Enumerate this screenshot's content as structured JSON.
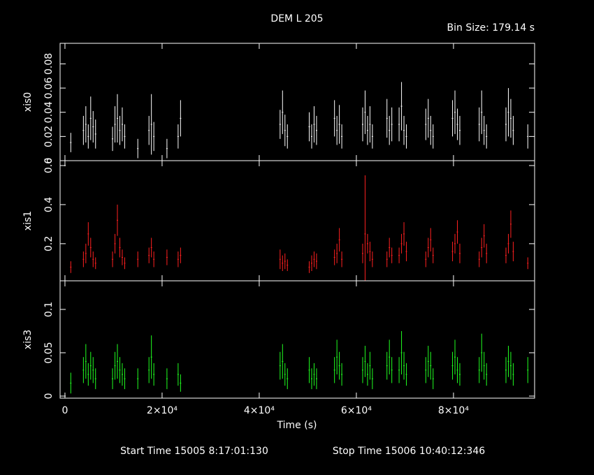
{
  "chart_data": [
    {
      "type": "errorbar",
      "title": "DEM L 205",
      "subtitle": "Bin Size: 179.14 s",
      "ylabel": "xis0",
      "color": "#ffffff",
      "xlim": [
        -1000,
        96700
      ],
      "ylim": [
        0,
        0.097
      ],
      "yticks": [
        0,
        0.02,
        0.04,
        0.06,
        0.08
      ],
      "x": [
        1200,
        3800,
        4300,
        4800,
        5300,
        5800,
        6300,
        9800,
        10300,
        10800,
        11300,
        11800,
        12300,
        15000,
        17300,
        17800,
        18300,
        21000,
        23300,
        23800,
        44300,
        44800,
        45300,
        45800,
        50300,
        50800,
        51300,
        51800,
        55500,
        56000,
        56500,
        57000,
        61300,
        61800,
        62300,
        62800,
        63300,
        66300,
        66800,
        67300,
        68800,
        69300,
        69800,
        70300,
        74300,
        74800,
        75300,
        75800,
        79800,
        80300,
        80800,
        81300,
        85300,
        85800,
        86300,
        86800,
        90800,
        91300,
        91800,
        92300,
        95300
      ],
      "values": [
        0.015,
        0.025,
        0.03,
        0.02,
        0.035,
        0.028,
        0.022,
        0.018,
        0.03,
        0.035,
        0.025,
        0.03,
        0.02,
        0.01,
        0.025,
        0.03,
        0.02,
        0.01,
        0.02,
        0.035,
        0.03,
        0.04,
        0.025,
        0.02,
        0.028,
        0.02,
        0.03,
        0.025,
        0.035,
        0.025,
        0.03,
        0.02,
        0.03,
        0.04,
        0.025,
        0.03,
        0.02,
        0.035,
        0.025,
        0.03,
        0.03,
        0.045,
        0.025,
        0.02,
        0.03,
        0.035,
        0.025,
        0.02,
        0.035,
        0.04,
        0.03,
        0.025,
        0.03,
        0.04,
        0.025,
        0.02,
        0.03,
        0.04,
        0.035,
        0.025,
        0.02
      ],
      "errors": [
        0.008,
        0.012,
        0.015,
        0.01,
        0.018,
        0.013,
        0.012,
        0.01,
        0.015,
        0.02,
        0.012,
        0.014,
        0.01,
        0.008,
        0.012,
        0.025,
        0.012,
        0.008,
        0.01,
        0.015,
        0.012,
        0.018,
        0.013,
        0.01,
        0.012,
        0.01,
        0.015,
        0.012,
        0.015,
        0.012,
        0.016,
        0.01,
        0.014,
        0.018,
        0.012,
        0.015,
        0.01,
        0.016,
        0.012,
        0.014,
        0.014,
        0.02,
        0.012,
        0.01,
        0.013,
        0.016,
        0.012,
        0.01,
        0.015,
        0.018,
        0.013,
        0.012,
        0.014,
        0.018,
        0.012,
        0.01,
        0.014,
        0.02,
        0.016,
        0.012,
        0.01
      ]
    },
    {
      "type": "errorbar",
      "ylabel": "xis1",
      "color": "#ff2020",
      "xlim": [
        -1000,
        96700
      ],
      "ylim": [
        0.01,
        0.625
      ],
      "yticks": [
        0.2,
        0.4,
        0.6
      ],
      "x": [
        1200,
        3800,
        4300,
        4800,
        5300,
        5800,
        6300,
        9800,
        10300,
        10800,
        11300,
        11800,
        12300,
        15000,
        17300,
        17800,
        18300,
        21000,
        23300,
        23800,
        44300,
        44800,
        45300,
        45800,
        50300,
        50800,
        51300,
        51800,
        55500,
        56000,
        56500,
        57000,
        61300,
        61800,
        62300,
        62800,
        63300,
        66300,
        66800,
        67300,
        68800,
        69300,
        69800,
        70300,
        74300,
        74800,
        75300,
        75800,
        79800,
        80300,
        80800,
        81300,
        85300,
        85800,
        86300,
        86800,
        90800,
        91300,
        91800,
        92300,
        95300
      ],
      "values": [
        0.08,
        0.12,
        0.15,
        0.25,
        0.18,
        0.12,
        0.1,
        0.12,
        0.2,
        0.32,
        0.18,
        0.13,
        0.1,
        0.12,
        0.14,
        0.18,
        0.12,
        0.13,
        0.12,
        0.14,
        0.12,
        0.1,
        0.11,
        0.09,
        0.08,
        0.1,
        0.12,
        0.11,
        0.13,
        0.15,
        0.22,
        0.12,
        0.15,
        0.25,
        0.2,
        0.16,
        0.12,
        0.12,
        0.18,
        0.14,
        0.14,
        0.2,
        0.25,
        0.16,
        0.12,
        0.18,
        0.22,
        0.14,
        0.16,
        0.2,
        0.26,
        0.15,
        0.12,
        0.18,
        0.24,
        0.15,
        0.14,
        0.2,
        0.3,
        0.16,
        0.1
      ],
      "errors": [
        0.03,
        0.04,
        0.05,
        0.06,
        0.05,
        0.04,
        0.03,
        0.04,
        0.05,
        0.08,
        0.05,
        0.04,
        0.03,
        0.04,
        0.04,
        0.05,
        0.04,
        0.04,
        0.04,
        0.04,
        0.05,
        0.04,
        0.04,
        0.03,
        0.03,
        0.04,
        0.04,
        0.04,
        0.04,
        0.05,
        0.06,
        0.04,
        0.05,
        0.3,
        0.05,
        0.05,
        0.04,
        0.04,
        0.05,
        0.04,
        0.04,
        0.05,
        0.06,
        0.05,
        0.04,
        0.05,
        0.06,
        0.04,
        0.05,
        0.05,
        0.06,
        0.05,
        0.04,
        0.05,
        0.06,
        0.05,
        0.04,
        0.05,
        0.07,
        0.05,
        0.03
      ]
    },
    {
      "type": "errorbar",
      "ylabel": "xis3",
      "color": "#20ff20",
      "xlabel": "Time (s)",
      "start_time": "Start Time 15005  8:17:01:130",
      "stop_time": "Stop Time 15006 10:40:12:346",
      "xlim": [
        -1000,
        96700
      ],
      "ylim": [
        -0.0024,
        0.133
      ],
      "yticks": [
        0,
        0.05,
        0.1
      ],
      "xticks": [
        0,
        {
          "value": 20000,
          "label": "2×10⁴"
        },
        {
          "value": 40000,
          "label": "4×10⁴"
        },
        {
          "value": 60000,
          "label": "6×10⁴"
        },
        {
          "value": 80000,
          "label": "8×10⁴"
        }
      ],
      "x": [
        1200,
        3800,
        4300,
        4800,
        5300,
        5800,
        6300,
        9800,
        10300,
        10800,
        11300,
        11800,
        12300,
        15000,
        17300,
        17800,
        18300,
        21000,
        23300,
        23800,
        44300,
        44800,
        45300,
        45800,
        50300,
        50800,
        51300,
        51800,
        55500,
        56000,
        56500,
        57000,
        61300,
        61800,
        62300,
        62800,
        63300,
        66300,
        66800,
        67300,
        68800,
        69300,
        69800,
        70300,
        74300,
        74800,
        75300,
        75800,
        79800,
        80300,
        80800,
        81300,
        85300,
        85800,
        86300,
        86800,
        90800,
        91300,
        91800,
        92300,
        95300
      ],
      "values": [
        0.015,
        0.03,
        0.04,
        0.025,
        0.035,
        0.03,
        0.02,
        0.02,
        0.035,
        0.04,
        0.03,
        0.025,
        0.02,
        0.02,
        0.03,
        0.045,
        0.025,
        0.02,
        0.025,
        0.015,
        0.035,
        0.04,
        0.025,
        0.02,
        0.03,
        0.02,
        0.025,
        0.02,
        0.03,
        0.045,
        0.035,
        0.025,
        0.03,
        0.04,
        0.025,
        0.035,
        0.02,
        0.035,
        0.045,
        0.03,
        0.03,
        0.05,
        0.035,
        0.025,
        0.03,
        0.04,
        0.035,
        0.02,
        0.035,
        0.045,
        0.03,
        0.025,
        0.03,
        0.05,
        0.035,
        0.025,
        0.03,
        0.04,
        0.035,
        0.025,
        0.03
      ],
      "errors": [
        0.012,
        0.015,
        0.02,
        0.013,
        0.016,
        0.015,
        0.012,
        0.012,
        0.016,
        0.02,
        0.015,
        0.013,
        0.012,
        0.012,
        0.015,
        0.025,
        0.013,
        0.012,
        0.013,
        0.01,
        0.016,
        0.02,
        0.013,
        0.012,
        0.015,
        0.012,
        0.013,
        0.012,
        0.015,
        0.02,
        0.016,
        0.013,
        0.015,
        0.018,
        0.013,
        0.016,
        0.012,
        0.016,
        0.02,
        0.015,
        0.015,
        0.025,
        0.016,
        0.013,
        0.015,
        0.018,
        0.016,
        0.012,
        0.016,
        0.02,
        0.015,
        0.013,
        0.015,
        0.022,
        0.016,
        0.013,
        0.015,
        0.018,
        0.016,
        0.013,
        0.015
      ]
    }
  ]
}
